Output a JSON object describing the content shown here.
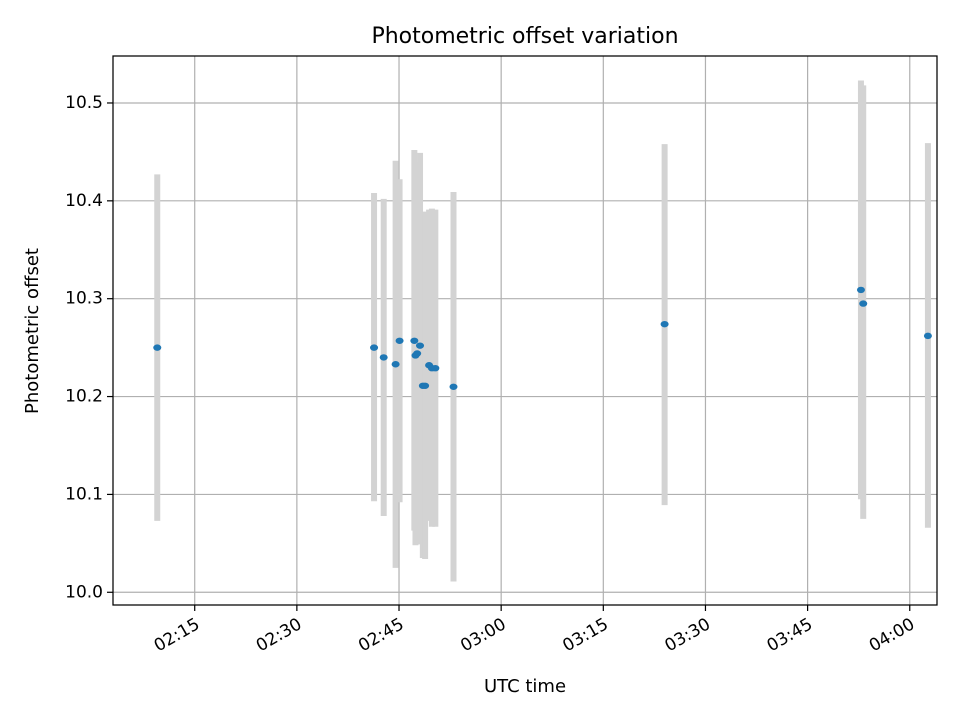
{
  "chart_data": {
    "type": "scatter",
    "title": "Photometric offset variation",
    "xlabel": "UTC time",
    "ylabel": "Photometric offset",
    "grid": true,
    "xlim": [
      "02:03",
      "04:04"
    ],
    "ylim": [
      9.987,
      10.548
    ],
    "x_ticks": [
      "02:15",
      "02:30",
      "02:45",
      "03:00",
      "03:15",
      "03:30",
      "03:45",
      "04:00"
    ],
    "y_ticks": [
      "10.0",
      "10.1",
      "10.2",
      "10.3",
      "10.4",
      "10.5"
    ],
    "marker_color": "#1f77b4",
    "errorbar_color": "#d3d3d3",
    "points": [
      {
        "x": "02:09:30",
        "y": 10.25,
        "ylo": 10.073,
        "yhi": 10.427
      },
      {
        "x": "02:41:20",
        "y": 10.25,
        "ylo": 10.093,
        "yhi": 10.408
      },
      {
        "x": "02:42:45",
        "y": 10.24,
        "ylo": 10.078,
        "yhi": 10.402
      },
      {
        "x": "02:44:30",
        "y": 10.233,
        "ylo": 10.025,
        "yhi": 10.441
      },
      {
        "x": "02:45:05",
        "y": 10.257,
        "ylo": 10.092,
        "yhi": 10.422
      },
      {
        "x": "02:47:15",
        "y": 10.257,
        "ylo": 10.063,
        "yhi": 10.452
      },
      {
        "x": "02:47:25",
        "y": 10.242,
        "ylo": 10.048,
        "yhi": 10.436
      },
      {
        "x": "02:47:40",
        "y": 10.244,
        "ylo": 10.049,
        "yhi": 10.439
      },
      {
        "x": "02:48:05",
        "y": 10.252,
        "ylo": 10.055,
        "yhi": 10.449
      },
      {
        "x": "02:48:30",
        "y": 10.211,
        "ylo": 10.035,
        "yhi": 10.387
      },
      {
        "x": "02:48:50",
        "y": 10.211,
        "ylo": 10.034,
        "yhi": 10.389
      },
      {
        "x": "02:49:25",
        "y": 10.232,
        "ylo": 10.073,
        "yhi": 10.391
      },
      {
        "x": "02:49:50",
        "y": 10.229,
        "ylo": 10.067,
        "yhi": 10.392
      },
      {
        "x": "02:50:20",
        "y": 10.229,
        "ylo": 10.067,
        "yhi": 10.391
      },
      {
        "x": "02:53:00",
        "y": 10.21,
        "ylo": 10.011,
        "yhi": 10.409
      },
      {
        "x": "03:24:00",
        "y": 10.274,
        "ylo": 10.089,
        "yhi": 10.458
      },
      {
        "x": "03:52:50",
        "y": 10.309,
        "ylo": 10.095,
        "yhi": 10.523
      },
      {
        "x": "03:53:10",
        "y": 10.295,
        "ylo": 10.075,
        "yhi": 10.518
      },
      {
        "x": "04:02:40",
        "y": 10.262,
        "ylo": 10.066,
        "yhi": 10.459
      }
    ]
  }
}
